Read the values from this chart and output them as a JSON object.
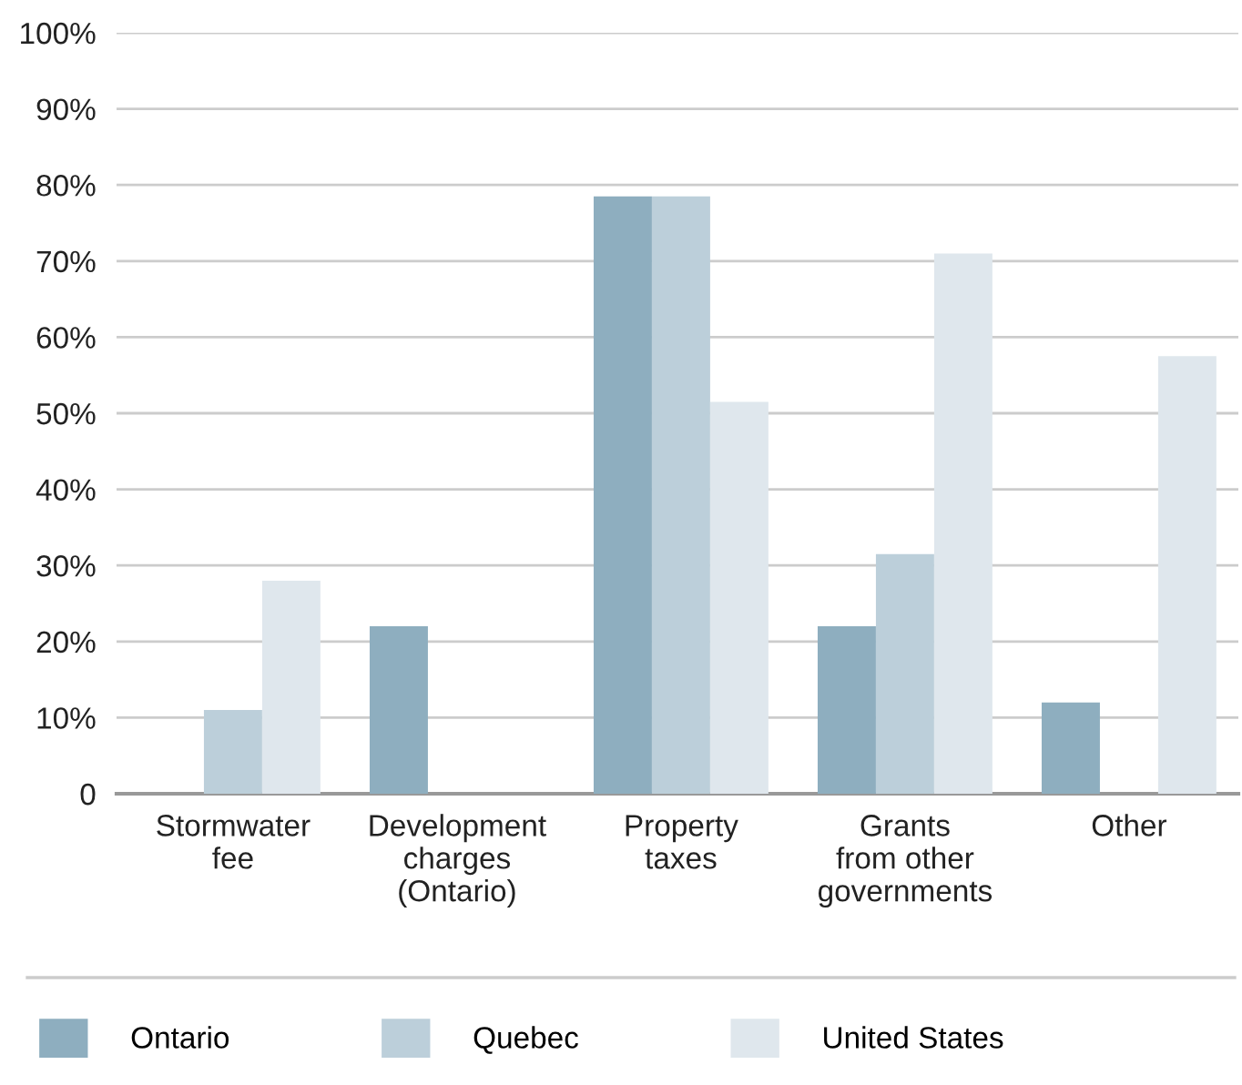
{
  "chart_data": {
    "type": "bar",
    "categories": [
      "Stormwater\nfee",
      "Development\ncharges\n(Ontario)",
      "Property\ntaxes",
      "Grants\nfrom other\ngovernments",
      "Other"
    ],
    "series": [
      {
        "name": "Ontario",
        "color": "#8eaebf",
        "values": [
          0,
          22,
          78.5,
          22,
          12
        ]
      },
      {
        "name": "Quebec",
        "color": "#bccfda",
        "values": [
          11,
          0,
          78.5,
          31.5,
          0
        ]
      },
      {
        "name": "United States",
        "color": "#dfe7ed",
        "values": [
          28,
          0,
          51.5,
          71,
          57.5
        ]
      }
    ],
    "ylim": [
      0,
      100
    ],
    "yticks": [
      0,
      {
        "value": 10,
        "label": "10%"
      },
      {
        "value": 20,
        "label": "20%"
      },
      {
        "value": 30,
        "label": "30%"
      },
      {
        "value": 40,
        "label": "40%"
      },
      {
        "value": 50,
        "label": "50%"
      },
      {
        "value": 60,
        "label": "60%"
      },
      {
        "value": 70,
        "label": "70%"
      },
      {
        "value": 80,
        "label": "80%"
      },
      {
        "value": 90,
        "label": "90%"
      },
      {
        "value": 100,
        "label": "100%"
      }
    ],
    "grid": "y",
    "legend": "bottom"
  }
}
